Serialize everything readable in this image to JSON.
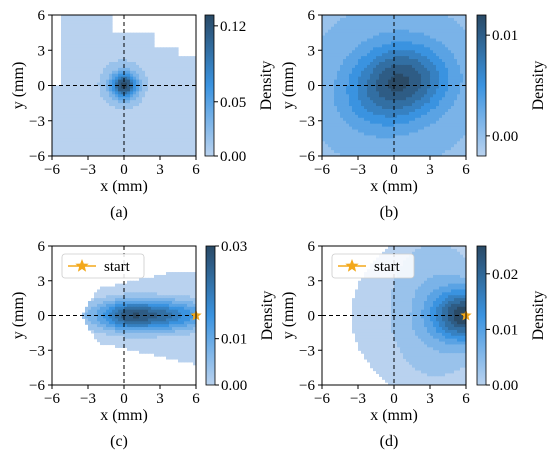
{
  "chart_data": [
    {
      "type": "heatmap",
      "panel_label": "(a)",
      "xlabel": "x (mm)",
      "ylabel": "y (mm)",
      "xlim": [
        -6,
        6
      ],
      "ylim": [
        -6,
        6
      ],
      "xticks": [
        -6,
        -3,
        0,
        3,
        6
      ],
      "yticks": [
        -6,
        -3,
        0,
        3,
        6
      ],
      "crosshair": [
        0,
        0
      ],
      "colorbar": {
        "label": "Density",
        "range": [
          0.0,
          0.13
        ],
        "ticks": [
          "0.00",
          "0.05",
          "0.12"
        ]
      },
      "peak": {
        "x": 0,
        "y": 0,
        "density": 0.13
      },
      "legend": null
    },
    {
      "type": "heatmap",
      "panel_label": "(b)",
      "xlabel": "x (mm)",
      "ylabel": "y (mm)",
      "xlim": [
        -6,
        6
      ],
      "ylim": [
        -6,
        6
      ],
      "xticks": [
        -6,
        -3,
        0,
        3,
        6
      ],
      "yticks": [
        -6,
        -3,
        0,
        3,
        6
      ],
      "crosshair": [
        0,
        0
      ],
      "colorbar": {
        "label": "Density",
        "range": [
          -0.002,
          0.012
        ],
        "ticks": [
          "0.00",
          "0.01"
        ]
      },
      "peak": {
        "x": 1.0,
        "y": 1.0,
        "density": 0.012
      },
      "legend": null
    },
    {
      "type": "heatmap",
      "panel_label": "(c)",
      "xlabel": "x (mm)",
      "ylabel": "y (mm)",
      "xlim": [
        -6,
        6
      ],
      "ylim": [
        -6,
        6
      ],
      "xticks": [
        -6,
        -3,
        0,
        3,
        6
      ],
      "yticks": [
        -6,
        -3,
        0,
        3,
        6
      ],
      "crosshair": [
        0,
        0
      ],
      "colorbar": {
        "label": "Density",
        "range": [
          0.0,
          0.03
        ],
        "ticks": [
          "0.00",
          "0.01",
          "0.03"
        ]
      },
      "peak": {
        "x": 0,
        "y": 0,
        "density": 0.03
      },
      "start": {
        "x": 6,
        "y": 0
      },
      "legend": {
        "label": "start",
        "placement": "top-left"
      }
    },
    {
      "type": "heatmap",
      "panel_label": "(d)",
      "xlabel": "x (mm)",
      "ylabel": "y (mm)",
      "xlim": [
        -6,
        6
      ],
      "ylim": [
        -6,
        6
      ],
      "xticks": [
        -6,
        -3,
        0,
        3,
        6
      ],
      "yticks": [
        -6,
        -3,
        0,
        3,
        6
      ],
      "crosshair": [
        0,
        0
      ],
      "colorbar": {
        "label": "Density",
        "range": [
          0.0,
          0.025
        ],
        "ticks": [
          "0.00",
          "0.01",
          "0.02"
        ]
      },
      "peak": {
        "x": 6,
        "y": 0,
        "density": 0.025
      },
      "start": {
        "x": 6,
        "y": 0
      },
      "legend": {
        "label": "start",
        "placement": "top-left"
      }
    }
  ],
  "colors": {
    "light": "#b9d2ef",
    "mid": "#3a93e0",
    "dark": "#2a4a66",
    "crosshair": "#000000",
    "star": "#f3a81b"
  }
}
